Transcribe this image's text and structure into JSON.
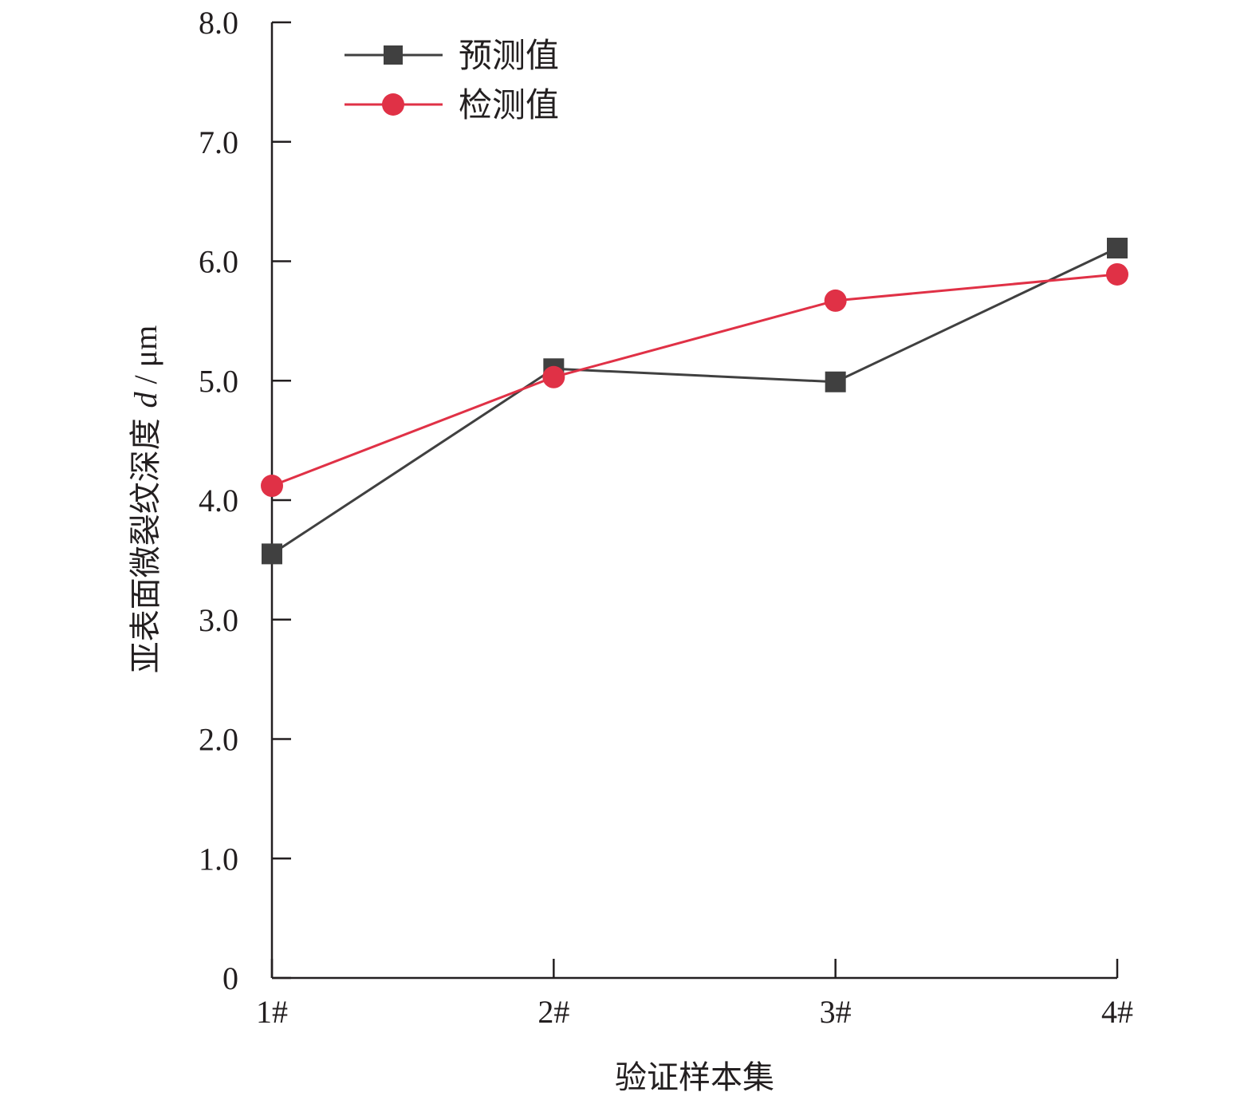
{
  "chart_data": {
    "type": "line",
    "categories": [
      "1#",
      "2#",
      "3#",
      "4#"
    ],
    "xlabel": "验证样本集",
    "ylabel": {
      "prefix": "亚表面微裂纹深度 ",
      "symbol": "d",
      "suffix": " / μm"
    },
    "ylim": [
      0,
      8
    ],
    "yticks": [
      0,
      1,
      2,
      3,
      4,
      5,
      6,
      7,
      8
    ],
    "ytick_labels": [
      "0",
      "1.0",
      "2.0",
      "3.0",
      "4.0",
      "5.0",
      "6.0",
      "7.0",
      "8.0"
    ],
    "legend_position": "top-left",
    "grid": false,
    "series": [
      {
        "name": "预测值",
        "marker": "square",
        "color": "#404040",
        "values": [
          3.55,
          5.1,
          4.99,
          6.11
        ]
      },
      {
        "name": "检测值",
        "marker": "circle",
        "color": "#e03146",
        "values": [
          4.12,
          5.03,
          5.67,
          5.89
        ]
      }
    ]
  }
}
